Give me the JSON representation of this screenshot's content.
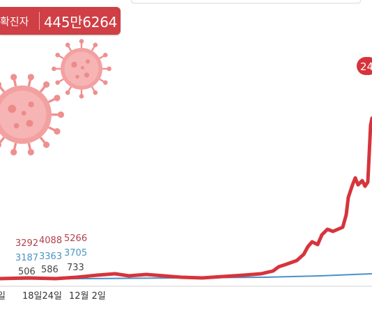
{
  "badge": {
    "label": "확진자",
    "value": "445만6264",
    "color": "#cf3f45"
  },
  "peak_label": "24",
  "icons": [
    "virus-icon",
    "virus-icon"
  ],
  "chart_data": {
    "type": "line",
    "title": "",
    "xlabel": "",
    "ylabel": "",
    "x_tick_labels": [
      "일",
      "18일24일",
      "12월 2일"
    ],
    "grid": false,
    "legend": "none",
    "series": [
      {
        "color": "#d6343c",
        "values": [
          0,
          3,
          10,
          15,
          12,
          18,
          40,
          45,
          60,
          80,
          120,
          160,
          210,
          300,
          380,
          450,
          520,
          680,
          720,
          800,
          780,
          850,
          1100,
          1150,
          1080,
          1500
        ]
      },
      {
        "color": "#4a90c8",
        "values": [
          0,
          1,
          2,
          3,
          4,
          5,
          6,
          7,
          8,
          9,
          10,
          11,
          12,
          13,
          14,
          15,
          16,
          17,
          18,
          19,
          20,
          21,
          22,
          23,
          24,
          25
        ]
      }
    ],
    "annotations": [
      {
        "series": "red",
        "values": [
          "3292",
          "4088",
          "5266"
        ]
      },
      {
        "series": "blue",
        "values": [
          "3187",
          "3363",
          "3705"
        ]
      },
      {
        "series": "dark",
        "values": [
          "506",
          "586",
          "733"
        ]
      }
    ]
  }
}
